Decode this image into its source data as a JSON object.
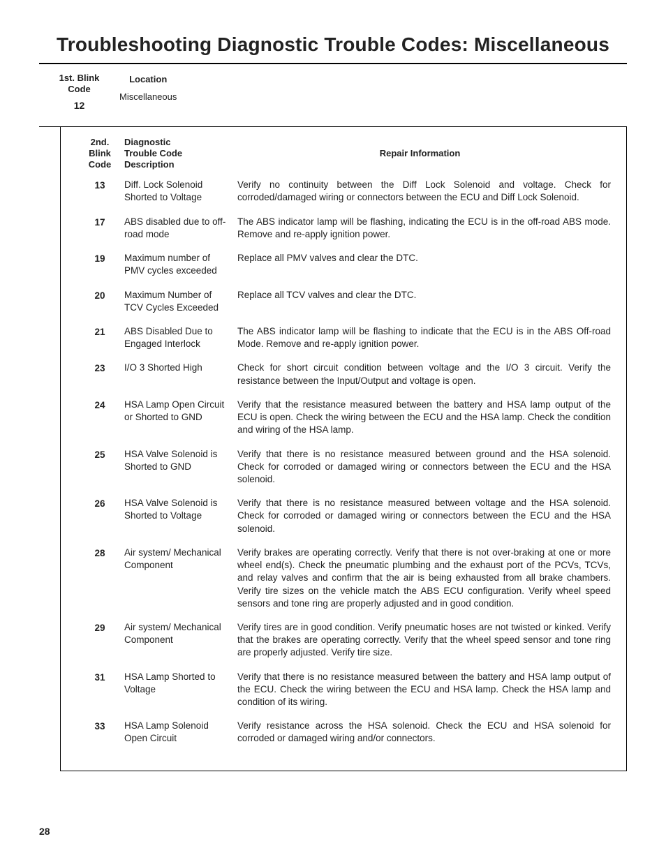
{
  "title": "Troubleshooting Diagnostic Trouble Codes: Miscellaneous",
  "header": {
    "blink_label_line1": "1st. Blink",
    "blink_label_line2": "Code",
    "blink_value": "12",
    "location_label": "Location",
    "location_value": "Miscellaneous"
  },
  "diag_head": {
    "code_line1": "2nd.",
    "code_line2": "Blink",
    "code_line3": "Code",
    "desc_line1": "Diagnostic",
    "desc_line2": "Trouble Code",
    "desc_line3": "Description",
    "repair": "Repair Information"
  },
  "rows": [
    {
      "code": "13",
      "desc": "Diff. Lock Solenoid Shorted to Voltage",
      "repair": "Verify no continuity between the Diff Lock Solenoid and voltage. Check for corroded/damaged wiring or connectors between the ECU and Diff Lock Solenoid."
    },
    {
      "code": "17",
      "desc": "ABS disabled due to off-road mode",
      "repair": "The ABS indicator lamp will be flashing, indicating the ECU is in the off-road ABS mode. Remove and re-apply ignition power."
    },
    {
      "code": "19",
      "desc": "Maximum number of PMV cycles exceeded",
      "repair": "Replace all PMV valves and clear the DTC."
    },
    {
      "code": "20",
      "desc": "Maximum Number of TCV Cycles Exceeded",
      "repair": "Replace all TCV valves and clear the DTC."
    },
    {
      "code": "21",
      "desc": "ABS Disabled Due to Engaged Interlock",
      "repair": "The ABS indicator lamp will be flashing to indicate that the ECU is in the ABS Off-road Mode. Remove and re-apply ignition power."
    },
    {
      "code": "23",
      "desc": "I/O 3 Shorted High",
      "repair": "Check for short circuit condition between voltage and the I/O 3 circuit.  Verify the resistance between the Input/Output and voltage is open."
    },
    {
      "code": "24",
      "desc": "HSA Lamp Open Circuit or Shorted to GND",
      "repair": "Verify that the resistance measured between the battery and HSA lamp output of the ECU is open.  Check the wiring between the ECU and the HSA lamp.  Check the condition and wiring of the HSA lamp."
    },
    {
      "code": "25",
      "desc": "HSA Valve Solenoid is Shorted to GND",
      "repair": "Verify that there is no resistance measured between ground and the HSA solenoid.  Check for corroded or damaged wiring or connectors between the ECU and the HSA solenoid."
    },
    {
      "code": "26",
      "desc": "HSA Valve Solenoid is Shorted to Voltage",
      "repair": "Verify that there is no resistance measured between voltage and the HSA solenoid.  Check for corroded or damaged wiring or connectors between the ECU and the HSA solenoid."
    },
    {
      "code": "28",
      "desc": "Air system/ Mechanical Component",
      "repair": "Verify brakes are operating correctly.  Verify that there is not over-braking at one or more wheel end(s).  Check the pneumatic plumbing and the exhaust port of the PCVs, TCVs, and relay valves and confirm that the air is being exhausted from all brake chambers.  Verify tire sizes on the vehicle match the ABS ECU configuration.  Verify wheel speed sensors and tone ring are properly adjusted and in good condition."
    },
    {
      "code": "29",
      "desc": "Air system/ Mechanical Component",
      "repair": "Verify tires are in good condition. Verify pneumatic hoses are not twisted or kinked.  Verify that the brakes are operating correctly.  Verify that the wheel speed sensor and tone ring are properly adjusted.  Verify tire size."
    },
    {
      "code": "31",
      "desc": "HSA Lamp Shorted to Voltage",
      "repair": "Verify that there is no resistance measured between the battery and HSA lamp output of the ECU.  Check the wiring between the ECU and HSA lamp.  Check the HSA lamp and condition of its wiring."
    },
    {
      "code": "33",
      "desc": "HSA Lamp Solenoid Open Circuit",
      "repair": "Verify resistance across the HSA solenoid.  Check the ECU and HSA solenoid for corroded or damaged wiring and/or connectors."
    }
  ],
  "page_number": "28"
}
